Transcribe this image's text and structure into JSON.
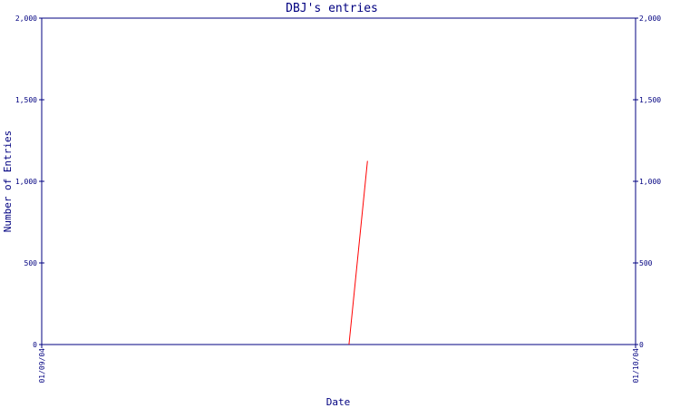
{
  "chart_data": {
    "type": "line",
    "title": "DBJ's entries",
    "xlabel": "Date",
    "ylabel": "Number of Entries",
    "x_ticks": [
      "01/09/04",
      "01/10/04"
    ],
    "x_range": [
      "01/09/04",
      "01/10/04"
    ],
    "y_ticks": [
      "0",
      "500",
      "1,000",
      "1,500",
      "2,000"
    ],
    "y_tick_values": [
      0,
      500,
      1000,
      1500,
      2000
    ],
    "ylim": [
      0,
      2000
    ],
    "right_axis": true,
    "grid": false,
    "series": [
      {
        "color": "#ff0000",
        "points": [
          {
            "x": "01/09/04 12:25",
            "y": 0
          },
          {
            "x": "01/09/04 13:10",
            "y": 1125
          }
        ]
      }
    ],
    "colors": {
      "axis": "#000080",
      "text": "#000080",
      "line": "#ff0000",
      "background": "#ffffff"
    }
  }
}
